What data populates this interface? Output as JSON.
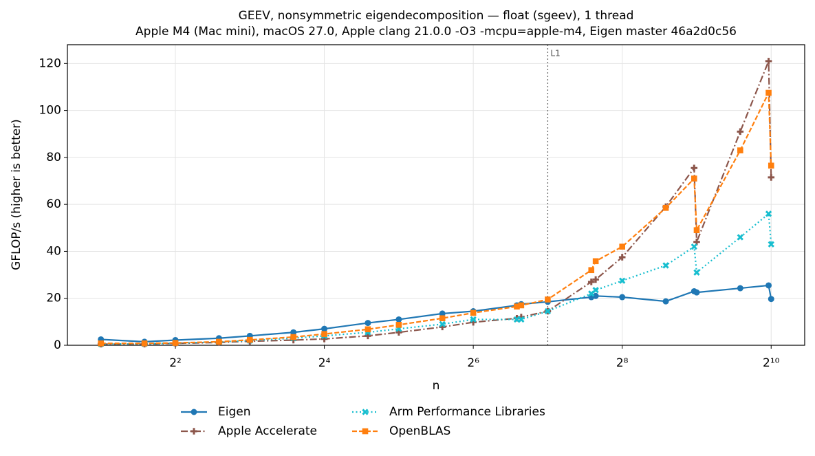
{
  "chart_data": {
    "type": "line",
    "title": "GEEV, nonsymmetric eigendecomposition — float (sgeev), 1 thread",
    "subtitle": "Apple M4 (Mac mini), macOS 27.0, Apple clang 21.0.0 -O3 -mcpu=apple-m4, Eigen master 46a2d0c56",
    "x_label": "n",
    "y_label": "GFLOP/s (higher is better)",
    "x_scale": "log2",
    "grid": true,
    "legend": "below",
    "x": [
      2,
      3,
      4,
      6,
      8,
      12,
      16,
      24,
      32,
      48,
      64,
      96,
      100,
      128,
      192,
      200,
      256,
      384,
      500,
      512,
      768,
      1000,
      1024
    ],
    "series": [
      {
        "name": "Eigen",
        "color": "#1f77b4",
        "dash": "solid",
        "marker": "circle",
        "values": [
          2.5,
          1.5,
          2.2,
          3,
          4,
          5.5,
          7,
          9.5,
          11,
          13.5,
          14.5,
          17,
          17.5,
          18.5,
          20.5,
          21,
          20.5,
          18.7,
          23,
          22.5,
          24.3,
          25.5,
          19.7
        ]
      },
      {
        "name": "Apple Accelerate",
        "color": "#8c564b",
        "dash": "dashdot",
        "marker": "plus",
        "values": [
          0.5,
          0.5,
          0.8,
          1.2,
          1.7,
          2.2,
          2.7,
          4,
          5.5,
          7.8,
          9.8,
          11.5,
          12,
          14.5,
          27,
          28,
          37.5,
          59,
          75.5,
          44,
          91,
          121,
          71.5
        ]
      },
      {
        "name": "Arm Performance Libraries",
        "color": "#17becf",
        "dash": "dotted",
        "marker": "x",
        "values": [
          0.5,
          0.6,
          0.9,
          1.4,
          2,
          3,
          4,
          5.5,
          7,
          9,
          11,
          11,
          11,
          14.5,
          22,
          23.5,
          27.5,
          34,
          42,
          31,
          46,
          56,
          43
        ]
      },
      {
        "name": "OpenBLAS",
        "color": "#ff7f0e",
        "dash": "dashed",
        "marker": "square",
        "values": [
          0.8,
          0.8,
          1,
          1.5,
          2.3,
          3.5,
          4.8,
          6.8,
          8.7,
          11.5,
          13.8,
          16.5,
          17,
          19.5,
          32,
          35.8,
          42,
          58.5,
          71,
          49,
          83,
          107.5,
          76.5
        ]
      }
    ],
    "annotations": [
      {
        "text": "L1",
        "x": 128
      }
    ],
    "xlim": [
      1.464,
      1399
    ],
    "xticks": [
      {
        "value": 4,
        "label": "2²"
      },
      {
        "value": 16,
        "label": "2⁴"
      },
      {
        "value": 64,
        "label": "2⁶"
      },
      {
        "value": 256,
        "label": "2⁸"
      },
      {
        "value": 1024,
        "label": "2¹⁰"
      }
    ],
    "ylim": [
      0,
      128
    ],
    "yticks": [
      0,
      20,
      40,
      60,
      80,
      100,
      120
    ]
  }
}
